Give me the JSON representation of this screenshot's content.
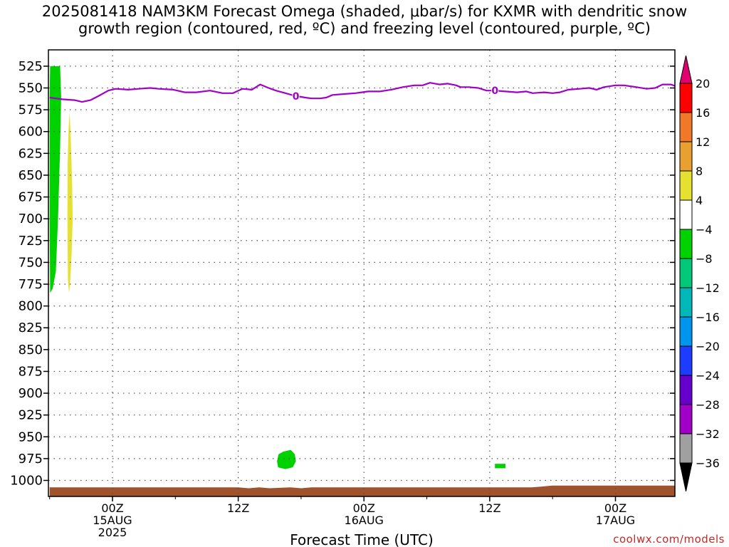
{
  "chart_data": {
    "type": "heatmap",
    "title_line1": "2025081418 NAM3KM Forecast Omega (shaded, μbar/s) for KXMR with dendritic snow",
    "title_line2": "growth region (contoured, red, ºC) and freezing level (contoured, purple, ºC)",
    "xlabel": "Forecast Time (UTC)",
    "y_axis": {
      "scale": "pressure (hPa), inverted",
      "ylim": [
        525,
        1015
      ],
      "ticks": [
        525,
        550,
        575,
        600,
        625,
        650,
        675,
        700,
        725,
        750,
        775,
        800,
        825,
        850,
        875,
        900,
        925,
        950,
        975,
        1000
      ]
    },
    "x_axis": {
      "xlim_hours": [
        18,
        78
      ],
      "ticks": [
        {
          "hour": 24,
          "label": "00Z",
          "sub1": "15AUG",
          "sub2": "2025"
        },
        {
          "hour": 36,
          "label": "12Z",
          "sub1": "",
          "sub2": ""
        },
        {
          "hour": 48,
          "label": "00Z",
          "sub1": "16AUG",
          "sub2": ""
        },
        {
          "hour": 60,
          "label": "12Z",
          "sub1": "",
          "sub2": ""
        },
        {
          "hour": 72,
          "label": "00Z",
          "sub1": "17AUG",
          "sub2": ""
        }
      ]
    },
    "grid": true,
    "colorbar": {
      "placement": "right",
      "levels": [
        20,
        16,
        12,
        8,
        4,
        -4,
        -8,
        -12,
        -16,
        -20,
        -24,
        -28,
        -32,
        -36
      ],
      "colors": [
        "#ff0000",
        "#f07828",
        "#e8a030",
        "#e6e030",
        "#ffffff",
        "#00d200",
        "#00c878",
        "#00b8b8",
        "#0096f0",
        "#1e3cff",
        "#6600cc",
        "#a000c8",
        "#a0a0a0"
      ],
      "top_arrow_color": "#e0006e",
      "bottom_arrow_color": "#000000"
    },
    "freezing_level": {
      "label": "0",
      "color": "#a000c8",
      "label_hours": [
        41.5,
        60.5
      ],
      "points": [
        [
          18.0,
          561
        ],
        [
          19.2,
          563
        ],
        [
          20.4,
          564
        ],
        [
          21.1,
          566
        ],
        [
          21.9,
          564
        ],
        [
          22.7,
          559
        ],
        [
          23.6,
          553
        ],
        [
          24.3,
          551
        ],
        [
          25.5,
          552
        ],
        [
          26.5,
          551
        ],
        [
          27.6,
          550
        ],
        [
          28.4,
          551
        ],
        [
          29.8,
          552
        ],
        [
          30.9,
          555
        ],
        [
          32.0,
          555
        ],
        [
          33.3,
          553
        ],
        [
          34.5,
          556
        ],
        [
          35.5,
          556
        ],
        [
          36.4,
          551
        ],
        [
          37.3,
          552
        ],
        [
          38.1,
          546
        ],
        [
          38.9,
          550
        ],
        [
          39.6,
          553
        ],
        [
          40.5,
          556
        ],
        [
          41.4,
          559
        ],
        [
          42.4,
          561
        ],
        [
          43.0,
          562
        ],
        [
          43.8,
          562
        ],
        [
          44.4,
          561
        ],
        [
          45.0,
          558
        ],
        [
          46.0,
          557
        ],
        [
          47.2,
          556
        ],
        [
          48.4,
          554
        ],
        [
          49.5,
          554
        ],
        [
          50.6,
          552
        ],
        [
          51.7,
          549
        ],
        [
          52.8,
          547
        ],
        [
          53.6,
          547
        ],
        [
          54.3,
          544
        ],
        [
          55.2,
          546
        ],
        [
          56.0,
          545
        ],
        [
          56.8,
          547
        ],
        [
          57.2,
          549
        ],
        [
          58.0,
          549
        ],
        [
          58.9,
          550
        ],
        [
          59.7,
          553
        ],
        [
          60.5,
          553
        ],
        [
          61.5,
          554
        ],
        [
          62.6,
          555
        ],
        [
          63.5,
          554
        ],
        [
          64.1,
          556
        ],
        [
          65.2,
          555
        ],
        [
          66.0,
          556
        ],
        [
          66.7,
          555
        ],
        [
          67.5,
          552
        ],
        [
          68.6,
          551
        ],
        [
          69.5,
          550
        ],
        [
          70.2,
          552
        ],
        [
          70.9,
          549
        ],
        [
          72.0,
          547
        ],
        [
          72.8,
          547
        ],
        [
          74.0,
          549
        ],
        [
          75.0,
          551
        ],
        [
          75.8,
          550
        ],
        [
          76.5,
          546
        ],
        [
          77.3,
          546
        ],
        [
          78.0,
          549
        ]
      ]
    },
    "omega_regions": [
      {
        "level": -4,
        "color": "#00d200",
        "polygon": [
          [
            18.05,
            525
          ],
          [
            19.0,
            525
          ],
          [
            19.1,
            560
          ],
          [
            19.0,
            620
          ],
          [
            18.8,
            700
          ],
          [
            18.6,
            760
          ],
          [
            18.3,
            780
          ],
          [
            18.05,
            785
          ],
          [
            18.0,
            700
          ],
          [
            18.0,
            560
          ]
        ]
      },
      {
        "level": 4,
        "color": "#e6e030",
        "polygon": [
          [
            19.9,
            578
          ],
          [
            20.0,
            600
          ],
          [
            20.15,
            660
          ],
          [
            20.2,
            700
          ],
          [
            20.1,
            740
          ],
          [
            19.95,
            775
          ],
          [
            19.85,
            785
          ],
          [
            19.75,
            770
          ],
          [
            19.7,
            700
          ],
          [
            19.72,
            640
          ],
          [
            19.8,
            600
          ]
        ]
      },
      {
        "level": -4,
        "color": "#00d200",
        "polygon": [
          [
            40.3,
            967
          ],
          [
            41.0,
            965
          ],
          [
            41.4,
            970
          ],
          [
            41.5,
            978
          ],
          [
            41.2,
            985
          ],
          [
            40.5,
            987
          ],
          [
            39.8,
            985
          ],
          [
            39.7,
            978
          ],
          [
            39.85,
            970
          ]
        ]
      },
      {
        "level": -4,
        "color": "#00d200",
        "polygon": [
          [
            60.5,
            981
          ],
          [
            61.5,
            981
          ],
          [
            61.5,
            986
          ],
          [
            60.5,
            986
          ]
        ]
      }
    ],
    "surface": {
      "color": "#a0522d",
      "top_points": [
        [
          18,
          1008
        ],
        [
          36,
          1008
        ],
        [
          37,
          1009
        ],
        [
          38,
          1008
        ],
        [
          39,
          1009
        ],
        [
          41,
          1008
        ],
        [
          42,
          1009
        ],
        [
          43,
          1008
        ],
        [
          60,
          1008
        ],
        [
          64,
          1008
        ],
        [
          65,
          1007
        ],
        [
          66,
          1006
        ],
        [
          78,
          1006
        ]
      ]
    }
  },
  "credit": "coolwx.com/models"
}
